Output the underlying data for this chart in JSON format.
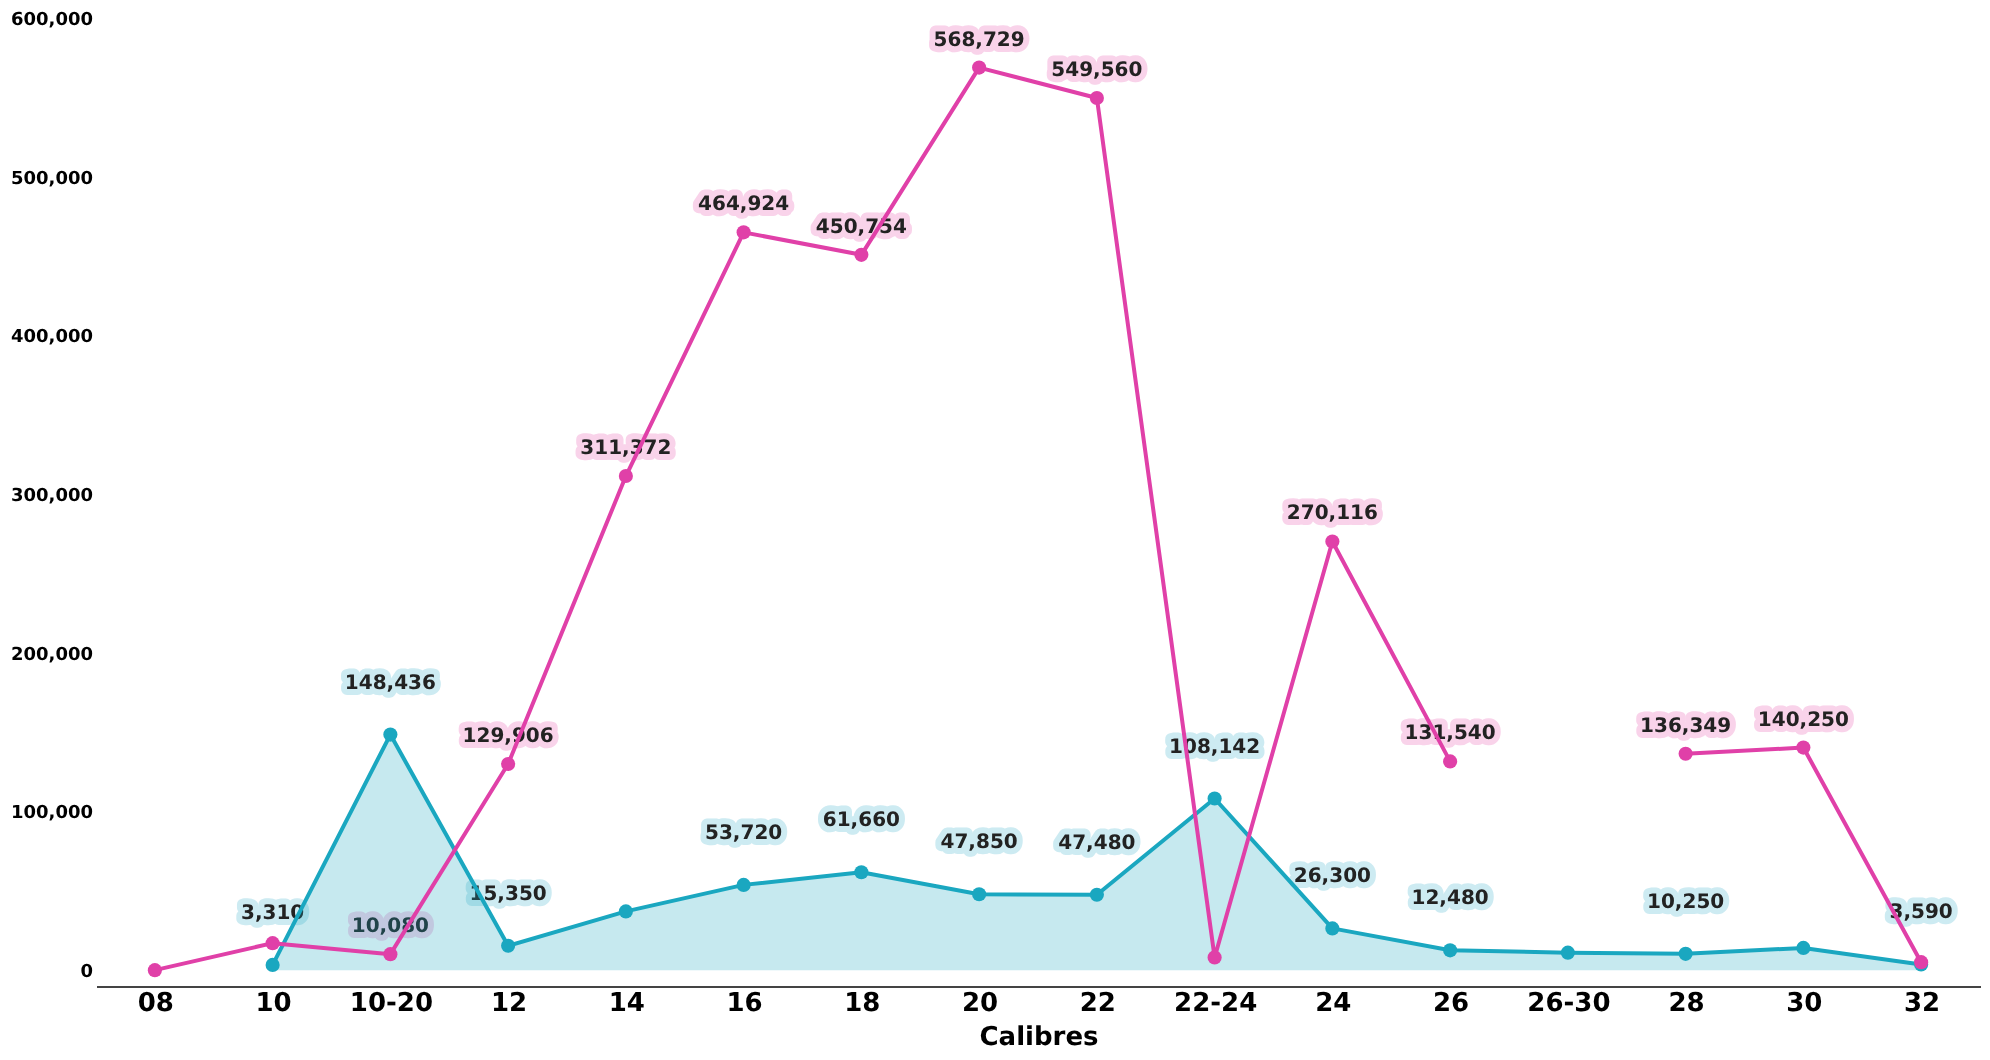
{
  "chart_data": {
    "type": "line",
    "xlabel": "Calibres",
    "categories": [
      "08",
      "10",
      "10-20",
      "12",
      "14",
      "16",
      "18",
      "20",
      "22",
      "22-24",
      "24",
      "26",
      "26-30",
      "28",
      "30",
      "32"
    ],
    "ylim": [
      -10000,
      600000
    ],
    "yticks": [
      0,
      {
        "value": 100000,
        "label": "100,000"
      },
      {
        "value": 200000,
        "label": "200,000"
      },
      {
        "value": 300000,
        "label": "300,000"
      },
      {
        "value": 400000,
        "label": "400,000"
      },
      {
        "value": 500000,
        "label": "500,000"
      },
      {
        "value": 600000,
        "label": "600,000"
      }
    ],
    "grid": false,
    "marker": "circle",
    "line_style": "solid",
    "series": [
      {
        "type": "area",
        "color": "#1aa7c0",
        "values": [
          null,
          3310,
          148436,
          15350,
          37000,
          53720,
          61660,
          47850,
          47480,
          108142,
          26300,
          12480,
          11000,
          10250,
          14000,
          3590
        ],
        "value_labels": [
          null,
          "3,310",
          "148,436",
          "15,350",
          null,
          "53,720",
          "61,660",
          "47,850",
          "47,480",
          "108,142",
          "26,300",
          "12,480",
          null,
          "10,250",
          null,
          "3,590"
        ]
      },
      {
        "color": "#e040a8",
        "values": [
          0,
          17000,
          10080,
          129906,
          311372,
          464924,
          450754,
          568729,
          549560,
          8000,
          270116,
          131540,
          null,
          136349,
          140250,
          5000
        ],
        "value_labels": [
          null,
          null,
          "10,080",
          "129,906",
          "311,372",
          "464,924",
          "450,754",
          "568,729",
          "549,560",
          null,
          "270,116",
          "131,540",
          null,
          "136,349",
          "140,250",
          null
        ]
      }
    ]
  }
}
